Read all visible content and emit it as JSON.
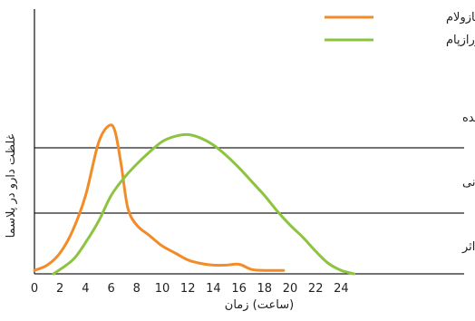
{
  "chart_data": {
    "type": "line",
    "xlabel": "(ساعت) زمان",
    "ylabel": "غلظت دارو در پلاسما",
    "xlim": [
      0,
      24
    ],
    "x_ticks": [
      "0",
      "2",
      "4",
      "6",
      "8",
      "10",
      "12",
      "14",
      "16",
      "18",
      "20",
      "22",
      "24"
    ],
    "y_unit": "relative plasma concentration",
    "thresholds": [
      {
        "label": "محدودۀ مقدار مسموم‌کننده",
        "boundary": 0.75
      },
      {
        "label": "محدودۀ درمانی",
        "boundary": 0.375
      },
      {
        "label": "محدودۀ بی‌اثر",
        "boundary": 0
      }
    ],
    "legend_position": "top-right",
    "series": [
      {
        "name": "تریازولام",
        "color": "#f28c28",
        "points": [
          [
            0,
            0.02
          ],
          [
            1,
            0.05
          ],
          [
            2,
            0.12
          ],
          [
            3,
            0.25
          ],
          [
            4,
            0.45
          ],
          [
            5,
            0.75
          ],
          [
            5.8,
            0.85
          ],
          [
            6.3,
            0.82
          ],
          [
            6.8,
            0.62
          ],
          [
            7.3,
            0.38
          ],
          [
            8,
            0.28
          ],
          [
            9,
            0.22
          ],
          [
            10,
            0.16
          ],
          [
            11,
            0.12
          ],
          [
            12,
            0.08
          ],
          [
            13,
            0.06
          ],
          [
            14,
            0.05
          ],
          [
            15,
            0.05
          ],
          [
            16,
            0.055
          ],
          [
            17,
            0.025
          ],
          [
            18,
            0.02
          ],
          [
            19.5,
            0.02
          ]
        ]
      },
      {
        "name": "لورازپام",
        "color": "#8dc43f",
        "points": [
          [
            1.5,
            0
          ],
          [
            3,
            0.08
          ],
          [
            4,
            0.18
          ],
          [
            5,
            0.3
          ],
          [
            6,
            0.45
          ],
          [
            7,
            0.55
          ],
          [
            8,
            0.63
          ],
          [
            9,
            0.7
          ],
          [
            10,
            0.76
          ],
          [
            11,
            0.79
          ],
          [
            12,
            0.8
          ],
          [
            13,
            0.78
          ],
          [
            14,
            0.74
          ],
          [
            15,
            0.68
          ],
          [
            16,
            0.61
          ],
          [
            17,
            0.53
          ],
          [
            18,
            0.45
          ],
          [
            19,
            0.36
          ],
          [
            20,
            0.28
          ],
          [
            21,
            0.21
          ],
          [
            22,
            0.13
          ],
          [
            23,
            0.06
          ],
          [
            24,
            0.02
          ],
          [
            25,
            0
          ]
        ]
      }
    ]
  }
}
